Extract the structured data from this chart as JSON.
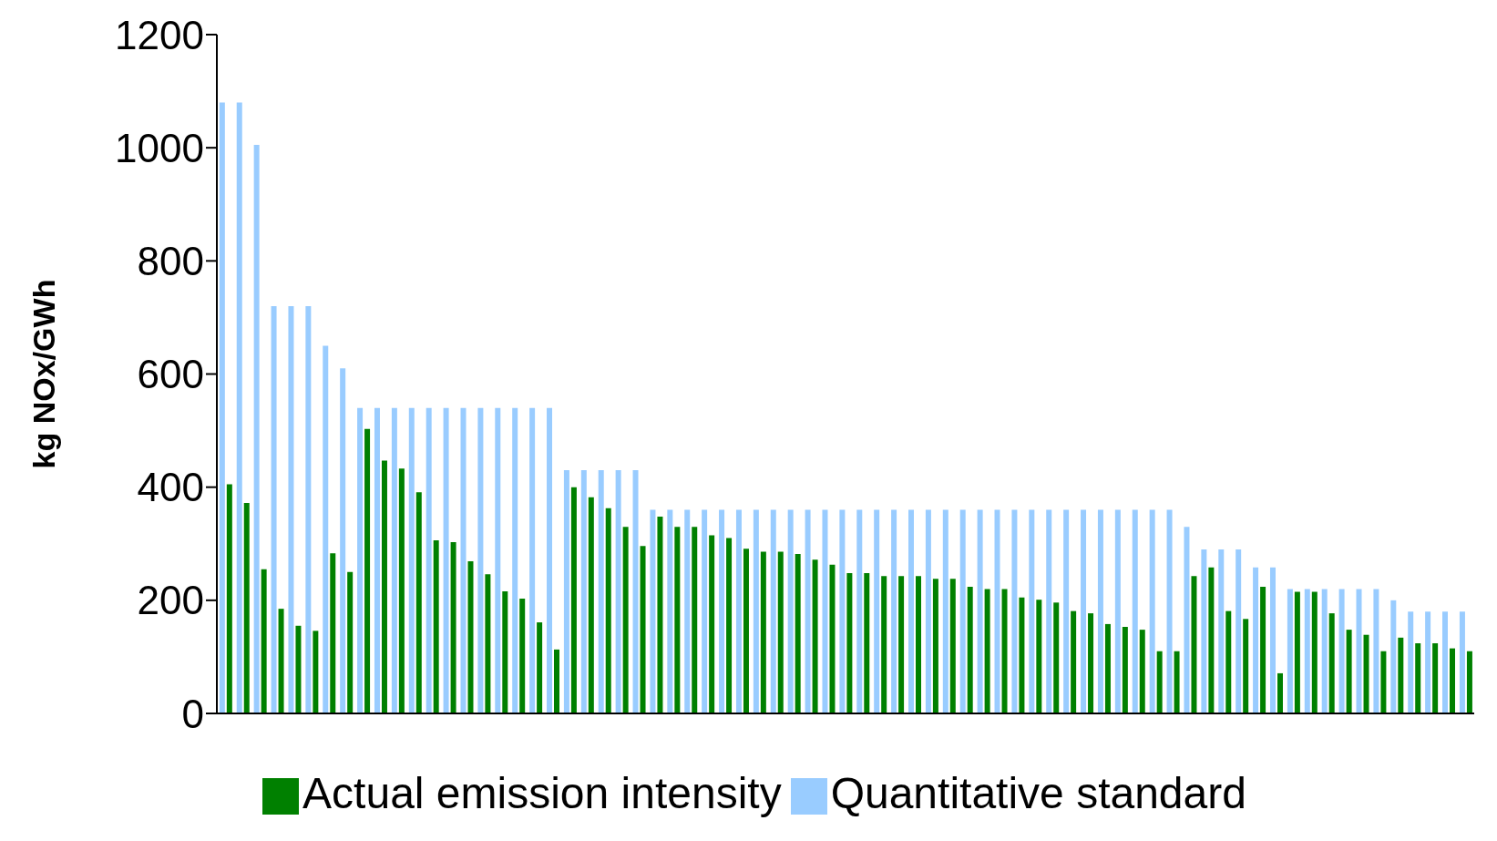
{
  "chart_data": {
    "type": "bar",
    "ylabel": "kg NOx/GWh",
    "categories": [
      null,
      null,
      null,
      null,
      null,
      null,
      null,
      null,
      null,
      null,
      null,
      null,
      null,
      null,
      null,
      null,
      null,
      null,
      null,
      null,
      null,
      null,
      null,
      null,
      null,
      null,
      null,
      null,
      null,
      null,
      null,
      null,
      null,
      null,
      null,
      null,
      null,
      null,
      null,
      null,
      null,
      null,
      null,
      null,
      null,
      null,
      null,
      null,
      null,
      null,
      null,
      null,
      null,
      null,
      null,
      null,
      null,
      null,
      null,
      null,
      null,
      null,
      null,
      null,
      null,
      null,
      null,
      null,
      null,
      null,
      null,
      null,
      null
    ],
    "series": [
      {
        "name": "Quantitative standard",
        "color": "#99ccff",
        "values": [
          1080,
          1080,
          1005,
          720,
          720,
          720,
          650,
          610,
          540,
          540,
          540,
          540,
          540,
          540,
          540,
          540,
          540,
          540,
          540,
          540,
          430,
          430,
          430,
          430,
          430,
          360,
          360,
          360,
          360,
          360,
          360,
          360,
          360,
          360,
          360,
          360,
          360,
          360,
          360,
          360,
          360,
          360,
          360,
          360,
          360,
          360,
          360,
          360,
          360,
          360,
          360,
          360,
          360,
          360,
          360,
          360,
          330,
          290,
          290,
          290,
          258,
          258,
          220,
          220,
          220,
          220,
          220,
          220,
          200,
          180,
          180,
          180,
          180
        ]
      },
      {
        "name": "Actual emission intensity",
        "color": "#008000",
        "values": [
          405,
          372,
          255,
          185,
          155,
          146,
          283,
          250,
          503,
          447,
          433,
          391,
          306,
          303,
          269,
          246,
          216,
          203,
          161,
          113,
          400,
          382,
          363,
          330,
          296,
          348,
          330,
          330,
          315,
          310,
          291,
          286,
          286,
          282,
          272,
          263,
          248,
          248,
          243,
          243,
          243,
          238,
          238,
          224,
          220,
          220,
          205,
          201,
          196,
          181,
          177,
          158,
          153,
          148,
          110,
          110,
          243,
          258,
          181,
          167,
          224,
          71,
          215,
          215,
          177,
          148,
          139,
          110,
          134,
          124,
          124,
          115,
          110
        ]
      }
    ],
    "ylim": [
      0,
      1200
    ],
    "yticks": [
      0,
      200,
      400,
      600,
      800,
      1000,
      1200
    ],
    "grid": false,
    "legend": "bottom",
    "tick_labels": "y"
  }
}
